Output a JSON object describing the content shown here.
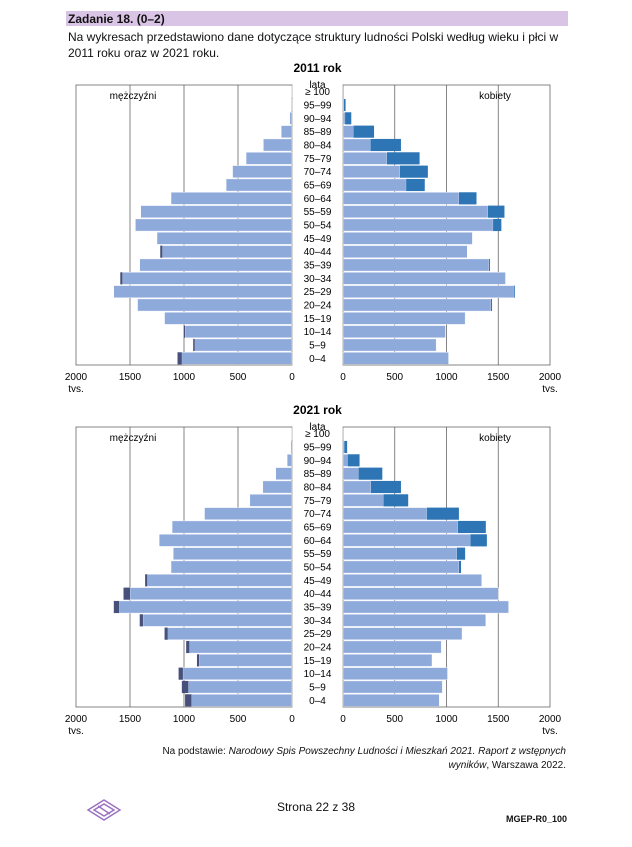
{
  "header": {
    "title": "Zadanie 18. (0–2)",
    "intro": "Na wykresach przedstawiono dane dotyczące struktury ludności Polski według wieku i płci w 2011 roku oraz w 2021 roku."
  },
  "colors": {
    "base": "#8eaadb",
    "male_excess": "#46507a",
    "female_excess": "#2e75b6",
    "grid": "#666666",
    "header_bar": "#d9c4e6"
  },
  "chart_data": [
    {
      "type": "bar",
      "orientation": "horizontal-population-pyramid",
      "title": "2011 rok",
      "age_axis_label": "lata",
      "categories": [
        "≥ 100",
        "95–99",
        "90–94",
        "85–89",
        "80–84",
        "75–79",
        "70–74",
        "65–69",
        "60–64",
        "55–59",
        "50–54",
        "45–49",
        "40–44",
        "35–39",
        "30–34",
        "25–29",
        "20–24",
        "15–19",
        "10–14",
        "5–9",
        "0–4"
      ],
      "left_label": "mężczyźni",
      "right_label": "kobiety",
      "x_ticks_left": [
        "2000",
        "1500",
        "1000",
        "500",
        "0"
      ],
      "x_ticks_right": [
        "0",
        "500",
        "1000",
        "1500",
        "2000"
      ],
      "unit": "tys.",
      "xlim": [
        0,
        2000
      ],
      "grid": true,
      "series": [
        {
          "name": "mężczyźni",
          "values": [
            1,
            8,
            20,
            100,
            265,
            425,
            550,
            610,
            1120,
            1400,
            1450,
            1250,
            1220,
            1410,
            1590,
            1650,
            1430,
            1180,
            1000,
            915,
            1060
          ]
        },
        {
          "name": "kobiety",
          "values": [
            4,
            25,
            80,
            300,
            560,
            740,
            820,
            790,
            1290,
            1560,
            1530,
            1250,
            1200,
            1420,
            1570,
            1660,
            1440,
            1180,
            990,
            900,
            1020
          ]
        }
      ]
    },
    {
      "type": "bar",
      "orientation": "horizontal-population-pyramid",
      "title": "2021 rok",
      "age_axis_label": "lata",
      "categories": [
        "≥ 100",
        "95–99",
        "90–94",
        "85–89",
        "80–84",
        "75–79",
        "70–74",
        "65–69",
        "60–64",
        "55–59",
        "50–54",
        "45–49",
        "40–44",
        "35–39",
        "30–34",
        "25–29",
        "20–24",
        "15–19",
        "10–14",
        "5–9",
        "0–4"
      ],
      "left_label": "mężczyźni",
      "right_label": "kobiety",
      "x_ticks_left": [
        "2000",
        "1500",
        "1000",
        "500",
        "0"
      ],
      "x_ticks_right": [
        "0",
        "500",
        "1000",
        "1500",
        "2000"
      ],
      "unit": "tys.",
      "xlim": [
        0,
        2000
      ],
      "grid": true,
      "series": [
        {
          "name": "mężczyźni",
          "values": [
            1,
            12,
            45,
            150,
            270,
            390,
            810,
            1110,
            1230,
            1100,
            1120,
            1360,
            1560,
            1650,
            1410,
            1180,
            980,
            880,
            1050,
            1020,
            990
          ]
        },
        {
          "name": "kobiety",
          "values": [
            3,
            40,
            160,
            380,
            560,
            630,
            1120,
            1380,
            1390,
            1180,
            1140,
            1340,
            1500,
            1600,
            1380,
            1150,
            950,
            860,
            1010,
            960,
            930
          ]
        }
      ]
    }
  ],
  "source": {
    "prefix": "Na podstawie: ",
    "title": "Narodowy Spis Powszechny Ludności i Mieszkań 2021. Raport z wstępnych wyników",
    "suffix": ", Warszawa 2022."
  },
  "footer": {
    "page": "Strona 22 z 38",
    "code": "MGEP-R0_100"
  }
}
